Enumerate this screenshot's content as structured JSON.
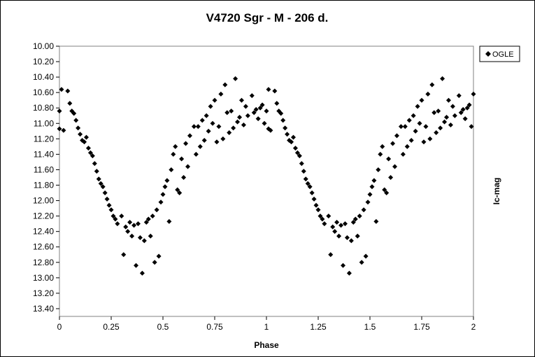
{
  "chart_data": {
    "type": "scatter",
    "title": "V4720 Sgr - M - 206 d.",
    "xlabel": "Phase",
    "ylabel": "Ic-mag",
    "xlim": [
      0,
      2
    ],
    "ylim": [
      10.0,
      13.5
    ],
    "y_inverted": true,
    "x_ticks": [
      0,
      0.25,
      0.5,
      0.75,
      1,
      1.25,
      1.5,
      1.75,
      2
    ],
    "x_tick_labels": [
      "0",
      "0.25",
      "0.5",
      "0.75",
      "1",
      "1.25",
      "1.5",
      "1.75",
      "2"
    ],
    "y_ticks": [
      10.0,
      10.2,
      10.4,
      10.6,
      10.8,
      11.0,
      11.2,
      11.4,
      11.6,
      11.8,
      12.0,
      12.2,
      12.4,
      12.6,
      12.8,
      13.0,
      13.2,
      13.4
    ],
    "y_tick_labels": [
      "10.00",
      "10.20",
      "10.40",
      "10.60",
      "10.80",
      "11.00",
      "11.20",
      "11.40",
      "11.60",
      "11.80",
      "12.00",
      "12.20",
      "12.40",
      "12.60",
      "12.80",
      "13.00",
      "13.20",
      "13.40"
    ],
    "grid": false,
    "legend_position": "top-right",
    "marker": "diamond",
    "series": [
      {
        "name": "OGLE",
        "color": "#000000",
        "points": [
          [
            0.0,
            10.84
          ],
          [
            0.0,
            11.07
          ],
          [
            0.01,
            10.56
          ],
          [
            0.02,
            11.09
          ],
          [
            0.04,
            10.58
          ],
          [
            0.05,
            10.74
          ],
          [
            0.06,
            10.84
          ],
          [
            0.07,
            10.87
          ],
          [
            0.08,
            10.96
          ],
          [
            0.09,
            11.06
          ],
          [
            0.1,
            11.14
          ],
          [
            0.11,
            11.22
          ],
          [
            0.12,
            11.24
          ],
          [
            0.13,
            11.18
          ],
          [
            0.14,
            11.32
          ],
          [
            0.15,
            11.38
          ],
          [
            0.16,
            11.42
          ],
          [
            0.17,
            11.52
          ],
          [
            0.18,
            11.62
          ],
          [
            0.19,
            11.72
          ],
          [
            0.2,
            11.78
          ],
          [
            0.21,
            11.82
          ],
          [
            0.22,
            11.9
          ],
          [
            0.23,
            11.98
          ],
          [
            0.24,
            12.06
          ],
          [
            0.25,
            12.12
          ],
          [
            0.26,
            12.2
          ],
          [
            0.27,
            12.24
          ],
          [
            0.28,
            12.3
          ],
          [
            0.3,
            12.2
          ],
          [
            0.31,
            12.7
          ],
          [
            0.32,
            12.34
          ],
          [
            0.33,
            12.4
          ],
          [
            0.34,
            12.28
          ],
          [
            0.35,
            12.46
          ],
          [
            0.36,
            12.32
          ],
          [
            0.37,
            12.84
          ],
          [
            0.38,
            12.3
          ],
          [
            0.39,
            12.48
          ],
          [
            0.4,
            12.94
          ],
          [
            0.41,
            12.52
          ],
          [
            0.42,
            12.28
          ],
          [
            0.43,
            12.24
          ],
          [
            0.44,
            12.46
          ],
          [
            0.45,
            12.2
          ],
          [
            0.46,
            12.8
          ],
          [
            0.47,
            12.12
          ],
          [
            0.48,
            12.72
          ],
          [
            0.49,
            12.02
          ],
          [
            0.5,
            11.92
          ],
          [
            0.51,
            11.82
          ],
          [
            0.52,
            11.74
          ],
          [
            0.53,
            12.27
          ],
          [
            0.54,
            11.6
          ],
          [
            0.55,
            11.4
          ],
          [
            0.56,
            11.3
          ],
          [
            0.57,
            11.86
          ],
          [
            0.58,
            11.9
          ],
          [
            0.59,
            11.46
          ],
          [
            0.6,
            11.7
          ],
          [
            0.61,
            11.26
          ],
          [
            0.62,
            11.56
          ],
          [
            0.63,
            11.16
          ],
          [
            0.65,
            11.04
          ],
          [
            0.66,
            11.4
          ],
          [
            0.67,
            11.04
          ],
          [
            0.68,
            11.3
          ],
          [
            0.69,
            10.96
          ],
          [
            0.7,
            11.22
          ],
          [
            0.71,
            10.9
          ],
          [
            0.72,
            11.1
          ],
          [
            0.73,
            10.78
          ],
          [
            0.74,
            11.0
          ],
          [
            0.75,
            10.7
          ],
          [
            0.76,
            11.24
          ],
          [
            0.77,
            11.04
          ],
          [
            0.78,
            10.62
          ],
          [
            0.79,
            11.2
          ],
          [
            0.8,
            10.5
          ],
          [
            0.81,
            10.86
          ],
          [
            0.82,
            11.12
          ],
          [
            0.83,
            10.84
          ],
          [
            0.84,
            11.06
          ],
          [
            0.85,
            10.42
          ],
          [
            0.86,
            10.98
          ],
          [
            0.87,
            10.92
          ],
          [
            0.88,
            10.7
          ],
          [
            0.89,
            11.02
          ],
          [
            0.9,
            10.78
          ],
          [
            0.91,
            10.9
          ],
          [
            0.93,
            10.64
          ],
          [
            0.94,
            10.86
          ],
          [
            0.95,
            10.82
          ],
          [
            0.96,
            10.94
          ],
          [
            0.97,
            10.8
          ],
          [
            0.98,
            10.76
          ],
          [
            0.99,
            11.0
          ],
          [
            1.0,
            10.84
          ],
          [
            1.01,
            11.07
          ],
          [
            1.01,
            10.56
          ],
          [
            1.02,
            11.09
          ],
          [
            1.04,
            10.58
          ],
          [
            1.05,
            10.74
          ],
          [
            1.06,
            10.84
          ],
          [
            1.07,
            10.87
          ],
          [
            1.08,
            10.96
          ],
          [
            1.09,
            11.06
          ],
          [
            1.1,
            11.14
          ],
          [
            1.11,
            11.22
          ],
          [
            1.12,
            11.24
          ],
          [
            1.13,
            11.18
          ],
          [
            1.14,
            11.32
          ],
          [
            1.15,
            11.38
          ],
          [
            1.16,
            11.42
          ],
          [
            1.17,
            11.52
          ],
          [
            1.18,
            11.62
          ],
          [
            1.19,
            11.72
          ],
          [
            1.2,
            11.78
          ],
          [
            1.21,
            11.82
          ],
          [
            1.22,
            11.9
          ],
          [
            1.23,
            11.98
          ],
          [
            1.24,
            12.06
          ],
          [
            1.25,
            12.12
          ],
          [
            1.26,
            12.2
          ],
          [
            1.27,
            12.24
          ],
          [
            1.28,
            12.3
          ],
          [
            1.3,
            12.2
          ],
          [
            1.31,
            12.7
          ],
          [
            1.32,
            12.34
          ],
          [
            1.33,
            12.4
          ],
          [
            1.34,
            12.28
          ],
          [
            1.35,
            12.46
          ],
          [
            1.36,
            12.32
          ],
          [
            1.37,
            12.84
          ],
          [
            1.38,
            12.3
          ],
          [
            1.39,
            12.48
          ],
          [
            1.4,
            12.94
          ],
          [
            1.41,
            12.52
          ],
          [
            1.42,
            12.28
          ],
          [
            1.43,
            12.24
          ],
          [
            1.44,
            12.46
          ],
          [
            1.45,
            12.2
          ],
          [
            1.46,
            12.8
          ],
          [
            1.47,
            12.12
          ],
          [
            1.48,
            12.72
          ],
          [
            1.49,
            12.02
          ],
          [
            1.5,
            11.92
          ],
          [
            1.51,
            11.82
          ],
          [
            1.52,
            11.74
          ],
          [
            1.53,
            12.27
          ],
          [
            1.54,
            11.6
          ],
          [
            1.55,
            11.4
          ],
          [
            1.56,
            11.3
          ],
          [
            1.57,
            11.86
          ],
          [
            1.58,
            11.9
          ],
          [
            1.59,
            11.46
          ],
          [
            1.6,
            11.7
          ],
          [
            1.61,
            11.26
          ],
          [
            1.62,
            11.56
          ],
          [
            1.63,
            11.16
          ],
          [
            1.65,
            11.04
          ],
          [
            1.66,
            11.4
          ],
          [
            1.67,
            11.04
          ],
          [
            1.68,
            11.3
          ],
          [
            1.69,
            10.96
          ],
          [
            1.7,
            11.22
          ],
          [
            1.71,
            10.9
          ],
          [
            1.72,
            11.1
          ],
          [
            1.73,
            10.78
          ],
          [
            1.74,
            11.0
          ],
          [
            1.75,
            10.7
          ],
          [
            1.76,
            11.24
          ],
          [
            1.77,
            11.04
          ],
          [
            1.78,
            10.62
          ],
          [
            1.79,
            11.2
          ],
          [
            1.8,
            10.5
          ],
          [
            1.81,
            10.86
          ],
          [
            1.82,
            11.12
          ],
          [
            1.83,
            10.84
          ],
          [
            1.84,
            11.06
          ],
          [
            1.85,
            10.42
          ],
          [
            1.86,
            10.98
          ],
          [
            1.87,
            10.92
          ],
          [
            1.88,
            10.7
          ],
          [
            1.89,
            11.02
          ],
          [
            1.9,
            10.78
          ],
          [
            1.91,
            10.9
          ],
          [
            1.93,
            10.64
          ],
          [
            1.94,
            10.86
          ],
          [
            1.95,
            10.82
          ],
          [
            1.96,
            10.94
          ],
          [
            1.97,
            10.8
          ],
          [
            1.98,
            10.76
          ],
          [
            1.99,
            11.04
          ],
          [
            2.0,
            10.62
          ]
        ]
      }
    ]
  }
}
